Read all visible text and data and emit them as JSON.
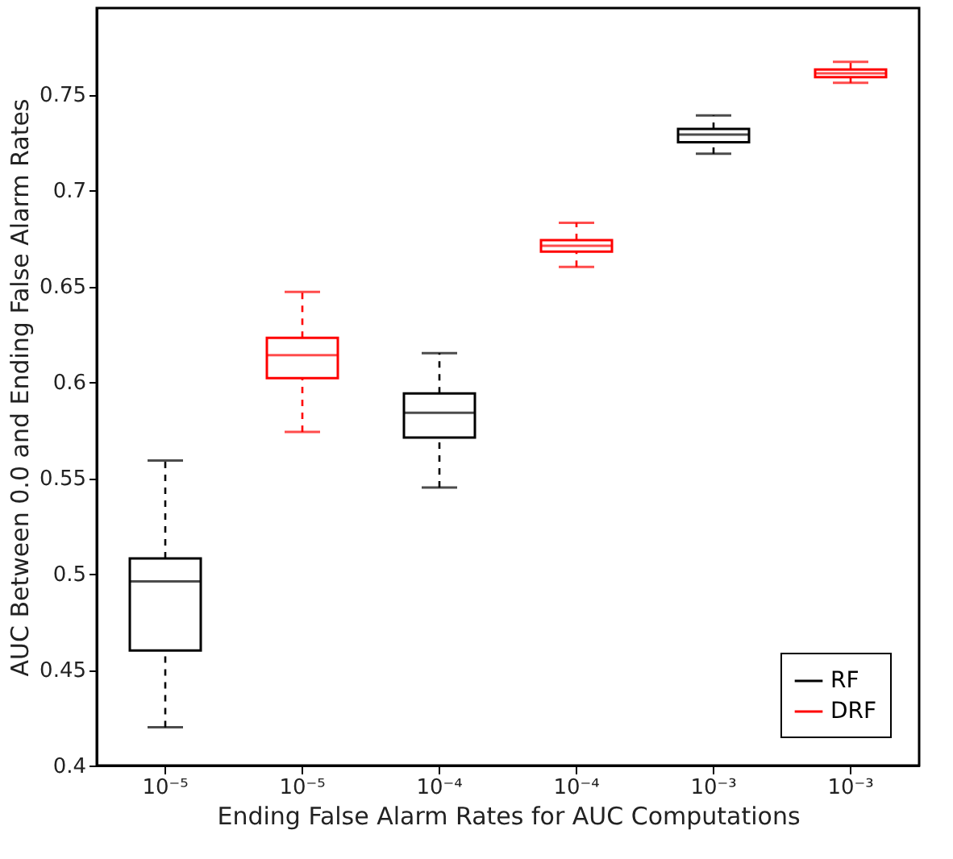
{
  "chart_data": {
    "type": "box",
    "xlabel": "Ending False Alarm Rates for AUC Computations",
    "ylabel": "AUC Between 0.0 and Ending False Alarm Rates",
    "categories": [
      "10⁻⁵",
      "10⁻⁵",
      "10⁻⁴",
      "10⁻⁴",
      "10⁻³",
      "10⁻³"
    ],
    "ylim": [
      0.4,
      0.795
    ],
    "yticks": [
      0.4,
      0.45,
      0.5,
      0.55,
      0.6,
      0.65,
      0.7,
      0.75
    ],
    "grid": false,
    "legend": "bottom right",
    "line_style": "dashed",
    "series": [
      {
        "name": "RF",
        "color": "#000000",
        "boxes": [
          {
            "low": 0.42,
            "q1": 0.46,
            "median": 0.496,
            "q3": 0.508,
            "high": 0.559
          },
          null,
          {
            "low": 0.545,
            "q1": 0.571,
            "median": 0.584,
            "q3": 0.594,
            "high": 0.615
          },
          null,
          {
            "low": 0.719,
            "q1": 0.725,
            "median": 0.729,
            "q3": 0.732,
            "high": 0.739
          },
          null
        ]
      },
      {
        "name": "DRF",
        "color": "#ff0000",
        "boxes": [
          null,
          {
            "low": 0.574,
            "q1": 0.602,
            "median": 0.614,
            "q3": 0.623,
            "high": 0.647
          },
          null,
          {
            "low": 0.66,
            "q1": 0.668,
            "median": 0.671,
            "q3": 0.674,
            "high": 0.683
          },
          null,
          {
            "low": 0.756,
            "q1": 0.759,
            "median": 0.761,
            "q3": 0.763,
            "high": 0.767
          }
        ]
      }
    ]
  }
}
